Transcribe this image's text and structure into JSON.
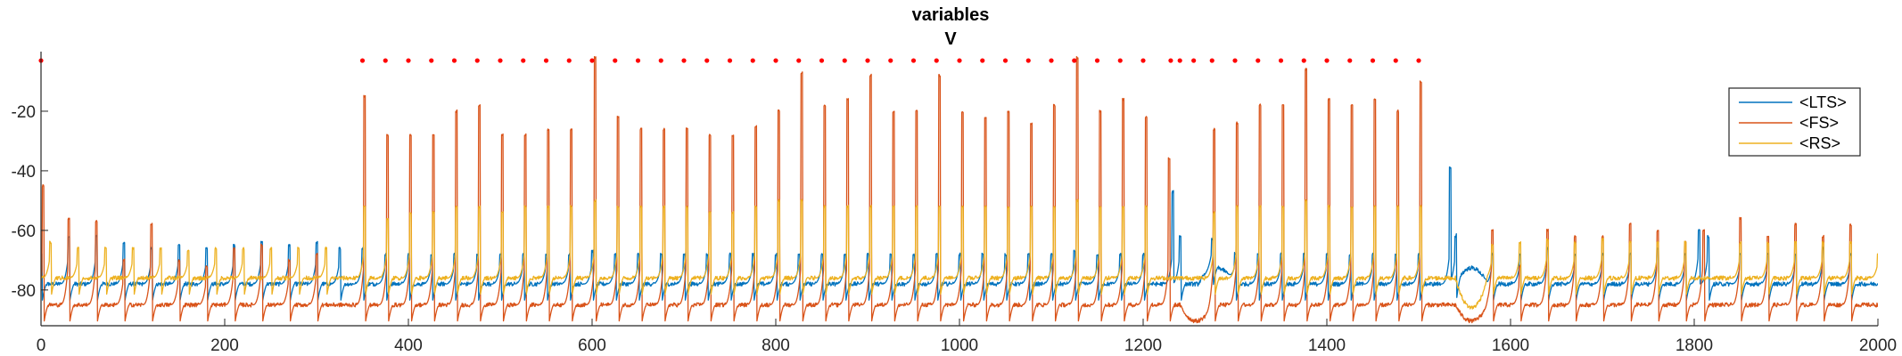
{
  "chart_data": {
    "type": "line",
    "title": "variables",
    "subtitle": "V",
    "xlabel": "",
    "ylabel": "",
    "xlim": [
      0,
      2000
    ],
    "ylim": [
      -92,
      0
    ],
    "x_ticks": [
      0,
      200,
      400,
      600,
      800,
      1000,
      1200,
      1400,
      1600,
      1800,
      2000
    ],
    "y_ticks": [
      -80,
      -60,
      -40,
      -20
    ],
    "grid": false,
    "legend_position": "top-right",
    "legend": [
      "<LTS>",
      "<FS>",
      "<RS>"
    ],
    "colors": {
      "LTS": "#0072BD",
      "FS": "#D95319",
      "RS": "#EDB120",
      "markers": "#FF0000"
    },
    "series": [
      {
        "name": "<LTS>",
        "color": "#0072BD",
        "baseline": -78,
        "spikes": [
          [
            0,
            -68
          ],
          [
            30,
            -62
          ],
          [
            60,
            -62
          ],
          [
            90,
            -64
          ],
          [
            120,
            -66
          ],
          [
            150,
            -65
          ],
          [
            180,
            -66
          ],
          [
            210,
            -65
          ],
          [
            240,
            -64
          ],
          [
            270,
            -65
          ],
          [
            300,
            -64
          ],
          [
            325,
            -66
          ],
          [
            350,
            -66
          ],
          [
            375,
            -68
          ],
          [
            400,
            -68
          ],
          [
            425,
            -68
          ],
          [
            450,
            -68
          ],
          [
            475,
            -68
          ],
          [
            500,
            -68
          ],
          [
            525,
            -68
          ],
          [
            550,
            -68
          ],
          [
            575,
            -68
          ],
          [
            600,
            -67
          ],
          [
            625,
            -68
          ],
          [
            650,
            -68
          ],
          [
            675,
            -68
          ],
          [
            700,
            -68
          ],
          [
            725,
            -68
          ],
          [
            750,
            -68
          ],
          [
            775,
            -68
          ],
          [
            800,
            -68
          ],
          [
            825,
            -68
          ],
          [
            850,
            -68
          ],
          [
            875,
            -68
          ],
          [
            900,
            -68
          ],
          [
            925,
            -68
          ],
          [
            950,
            -68
          ],
          [
            975,
            -68
          ],
          [
            1000,
            -68
          ],
          [
            1025,
            -68
          ],
          [
            1050,
            -68
          ],
          [
            1075,
            -68
          ],
          [
            1100,
            -68
          ],
          [
            1125,
            -67
          ],
          [
            1150,
            -68
          ],
          [
            1175,
            -68
          ],
          [
            1200,
            -68
          ],
          [
            1232,
            -47
          ],
          [
            1240,
            -62
          ],
          [
            1275,
            -68
          ],
          [
            1300,
            -68
          ],
          [
            1325,
            -68
          ],
          [
            1350,
            -68
          ],
          [
            1375,
            -68
          ],
          [
            1400,
            -68
          ],
          [
            1425,
            -68
          ],
          [
            1450,
            -68
          ],
          [
            1475,
            -68
          ],
          [
            1500,
            -68
          ],
          [
            1534,
            -39
          ],
          [
            1540,
            -62
          ],
          [
            1580,
            -68
          ],
          [
            1610,
            -68
          ],
          [
            1640,
            -66
          ],
          [
            1670,
            -68
          ],
          [
            1700,
            -68
          ],
          [
            1730,
            -68
          ],
          [
            1760,
            -66
          ],
          [
            1790,
            -68
          ],
          [
            1805,
            -60
          ],
          [
            1815,
            -62
          ],
          [
            1850,
            -68
          ],
          [
            1880,
            -68
          ],
          [
            1910,
            -68
          ],
          [
            1940,
            -66
          ],
          [
            1970,
            -68
          ]
        ]
      },
      {
        "name": "<FS>",
        "color": "#D95319",
        "baseline": -85,
        "spikes": [
          [
            2,
            -45
          ],
          [
            30,
            -56
          ],
          [
            60,
            -57
          ],
          [
            90,
            -70
          ],
          [
            120,
            -58
          ],
          [
            150,
            -70
          ],
          [
            180,
            -72
          ],
          [
            210,
            -66
          ],
          [
            240,
            -65
          ],
          [
            270,
            -70
          ],
          [
            300,
            -68
          ],
          [
            352,
            -15
          ],
          [
            377,
            -28
          ],
          [
            402,
            -28
          ],
          [
            427,
            -28
          ],
          [
            452,
            -20
          ],
          [
            477,
            -18
          ],
          [
            502,
            -28
          ],
          [
            527,
            -28
          ],
          [
            552,
            -26
          ],
          [
            577,
            -26
          ],
          [
            603,
            -2
          ],
          [
            628,
            -22
          ],
          [
            653,
            -26
          ],
          [
            678,
            -26
          ],
          [
            703,
            -26
          ],
          [
            728,
            -28
          ],
          [
            753,
            -28
          ],
          [
            778,
            -25
          ],
          [
            803,
            -20
          ],
          [
            828,
            -7
          ],
          [
            853,
            -18
          ],
          [
            878,
            -16
          ],
          [
            903,
            -8
          ],
          [
            928,
            -20
          ],
          [
            953,
            -20
          ],
          [
            978,
            -8
          ],
          [
            1003,
            -20
          ],
          [
            1028,
            -22
          ],
          [
            1053,
            -20
          ],
          [
            1078,
            -24
          ],
          [
            1103,
            -18
          ],
          [
            1128,
            -2
          ],
          [
            1153,
            -20
          ],
          [
            1178,
            -16
          ],
          [
            1203,
            -22
          ],
          [
            1228,
            -36
          ],
          [
            1277,
            -26
          ],
          [
            1302,
            -24
          ],
          [
            1327,
            -18
          ],
          [
            1352,
            -18
          ],
          [
            1377,
            -6
          ],
          [
            1402,
            -16
          ],
          [
            1427,
            -18
          ],
          [
            1452,
            -16
          ],
          [
            1477,
            -20
          ],
          [
            1502,
            -10
          ],
          [
            1580,
            -60
          ],
          [
            1610,
            -72
          ],
          [
            1640,
            -60
          ],
          [
            1670,
            -62
          ],
          [
            1700,
            -62
          ],
          [
            1730,
            -58
          ],
          [
            1760,
            -60
          ],
          [
            1790,
            -64
          ],
          [
            1810,
            -60
          ],
          [
            1850,
            -56
          ],
          [
            1880,
            -62
          ],
          [
            1910,
            -58
          ],
          [
            1940,
            -62
          ],
          [
            1970,
            -58
          ]
        ]
      },
      {
        "name": "<RS>",
        "color": "#EDB120",
        "baseline": -76,
        "spikes": [
          [
            10,
            -64
          ],
          [
            40,
            -66
          ],
          [
            70,
            -66
          ],
          [
            100,
            -66
          ],
          [
            130,
            -66
          ],
          [
            160,
            -67
          ],
          [
            190,
            -66
          ],
          [
            220,
            -66
          ],
          [
            250,
            -66
          ],
          [
            280,
            -66
          ],
          [
            310,
            -66
          ],
          [
            352,
            -52
          ],
          [
            377,
            -56
          ],
          [
            402,
            -54
          ],
          [
            427,
            -54
          ],
          [
            452,
            -52
          ],
          [
            477,
            -52
          ],
          [
            502,
            -54
          ],
          [
            527,
            -52
          ],
          [
            552,
            -52
          ],
          [
            577,
            -52
          ],
          [
            603,
            -50
          ],
          [
            628,
            -52
          ],
          [
            653,
            -52
          ],
          [
            678,
            -52
          ],
          [
            703,
            -52
          ],
          [
            728,
            -54
          ],
          [
            753,
            -54
          ],
          [
            778,
            -52
          ],
          [
            803,
            -50
          ],
          [
            828,
            -50
          ],
          [
            853,
            -52
          ],
          [
            878,
            -52
          ],
          [
            903,
            -52
          ],
          [
            928,
            -52
          ],
          [
            953,
            -52
          ],
          [
            978,
            -52
          ],
          [
            1003,
            -52
          ],
          [
            1028,
            -52
          ],
          [
            1053,
            -52
          ],
          [
            1078,
            -52
          ],
          [
            1103,
            -52
          ],
          [
            1128,
            -50
          ],
          [
            1153,
            -52
          ],
          [
            1178,
            -52
          ],
          [
            1203,
            -52
          ],
          [
            1277,
            -54
          ],
          [
            1302,
            -52
          ],
          [
            1327,
            -52
          ],
          [
            1352,
            -52
          ],
          [
            1377,
            -50
          ],
          [
            1402,
            -52
          ],
          [
            1427,
            -52
          ],
          [
            1452,
            -52
          ],
          [
            1477,
            -52
          ],
          [
            1502,
            -52
          ],
          [
            1580,
            -65
          ],
          [
            1610,
            -64
          ],
          [
            1640,
            -63
          ],
          [
            1670,
            -64
          ],
          [
            1700,
            -63
          ],
          [
            1730,
            -64
          ],
          [
            1760,
            -64
          ],
          [
            1790,
            -64
          ],
          [
            1850,
            -64
          ],
          [
            1880,
            -64
          ],
          [
            1910,
            -64
          ],
          [
            1940,
            -64
          ],
          [
            1970,
            -64
          ],
          [
            2000,
            -68
          ]
        ]
      },
      {
        "name": "",
        "color": "#FF0000",
        "style": "markers",
        "y": -3,
        "x": [
          0,
          350,
          375,
          400,
          425,
          450,
          475,
          500,
          525,
          550,
          575,
          600,
          625,
          650,
          675,
          700,
          725,
          750,
          775,
          800,
          825,
          850,
          875,
          900,
          925,
          950,
          975,
          1000,
          1025,
          1050,
          1075,
          1100,
          1125,
          1150,
          1175,
          1200,
          1230,
          1240,
          1255,
          1275,
          1300,
          1325,
          1350,
          1375,
          1400,
          1425,
          1450,
          1475,
          1500
        ]
      }
    ],
    "troughs": [
      {
        "series": "<LTS>",
        "x_range": [
          1260,
          1300
        ],
        "y": -72
      },
      {
        "series": "<LTS>",
        "x_range": [
          1540,
          1575
        ],
        "y": -72
      },
      {
        "series": "<FS>",
        "x_range": [
          1240,
          1275
        ],
        "y": -91
      },
      {
        "series": "<FS>",
        "x_range": [
          1540,
          1575
        ],
        "y": -91
      },
      {
        "series": "<RS>",
        "x_range": [
          1540,
          1575
        ],
        "y": -87
      },
      {
        "series": "<RS>",
        "x_range": [
          1800,
          1830
        ],
        "y": -76
      }
    ]
  }
}
